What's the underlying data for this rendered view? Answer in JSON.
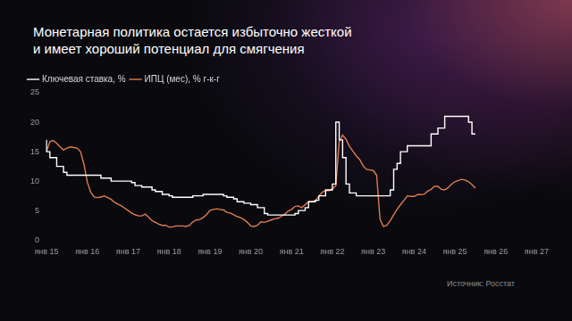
{
  "chart_data": {
    "type": "line",
    "title": [
      "Монетарная политика остается избыточно жесткой",
      "и имеет хороший потенциал для смягчения"
    ],
    "source": "Источник: Росстат",
    "categories": [
      "янв 15",
      null,
      null,
      null,
      null,
      null,
      null,
      null,
      null,
      null,
      null,
      null,
      "янв 16",
      null,
      null,
      null,
      null,
      null,
      null,
      null,
      null,
      null,
      null,
      null,
      "янв 17",
      null,
      null,
      null,
      null,
      null,
      null,
      null,
      null,
      null,
      null,
      null,
      "янв 18",
      null,
      null,
      null,
      null,
      null,
      null,
      null,
      null,
      null,
      null,
      null,
      "янв 19",
      null,
      null,
      null,
      null,
      null,
      null,
      null,
      null,
      null,
      null,
      null,
      "янв 20",
      null,
      null,
      null,
      null,
      null,
      null,
      null,
      null,
      null,
      null,
      null,
      "янв 21",
      null,
      null,
      null,
      null,
      null,
      null,
      null,
      null,
      null,
      null,
      null,
      "янв 22",
      null,
      null,
      null,
      null,
      null,
      null,
      null,
      null,
      null,
      null,
      null,
      "янв 23",
      null,
      null,
      null,
      null,
      null,
      null,
      null,
      null,
      null,
      null,
      null,
      "янв 24",
      null,
      null,
      null,
      null,
      null,
      null,
      null,
      null,
      null,
      null,
      null,
      "янв 25",
      null,
      null,
      null,
      null,
      null,
      null,
      null,
      null,
      null,
      null,
      null,
      "янв 26",
      null,
      null,
      null,
      null,
      null,
      null,
      null,
      null,
      null,
      null,
      null,
      "янв 27"
    ],
    "series": [
      {
        "name": "Ключевая ставка, %",
        "color": "#ffffff",
        "line_style": "step",
        "values": [
          17,
          15,
          14,
          14,
          12.5,
          12.5,
          11.5,
          11,
          11,
          11,
          11,
          11,
          11,
          11,
          11,
          11,
          11,
          10.5,
          10.5,
          10.5,
          10,
          10,
          10,
          10,
          10,
          10,
          9.75,
          9.25,
          9.25,
          9,
          9,
          9,
          8.5,
          8.25,
          8.25,
          7.75,
          7.75,
          7.5,
          7.25,
          7.25,
          7.25,
          7.25,
          7.25,
          7.25,
          7.5,
          7.5,
          7.5,
          7.75,
          7.75,
          7.75,
          7.75,
          7.75,
          7.75,
          7.5,
          7.25,
          7.25,
          7,
          6.5,
          6.5,
          6.25,
          6.25,
          6,
          6,
          5.5,
          5.5,
          4.5,
          4.25,
          4.25,
          4.25,
          4.25,
          4.25,
          4.25,
          4.25,
          4.25,
          4.5,
          5,
          5,
          5.5,
          6.5,
          6.5,
          6.75,
          7.5,
          7.5,
          8.5,
          8.5,
          9.5,
          20,
          17,
          14,
          9.5,
          8,
          8,
          7.5,
          7.5,
          7.5,
          7.5,
          7.5,
          7.5,
          7.5,
          7.5,
          7.5,
          7.5,
          8.5,
          12,
          13,
          15,
          15,
          16,
          16,
          16,
          16,
          16,
          16,
          16,
          18,
          18,
          19,
          19,
          21,
          21,
          21,
          21,
          21,
          21,
          21,
          20,
          18,
          null,
          null,
          null,
          null,
          null,
          null,
          null,
          null,
          null,
          null,
          null,
          null,
          null,
          null,
          null,
          null,
          null,
          null
        ]
      },
      {
        "name": "ИПЦ (мес), % г-к-г",
        "color": "#e07b52",
        "line_style": "solid",
        "values": [
          15,
          16.7,
          16.9,
          16.4,
          15.8,
          15.3,
          15.6,
          15.8,
          15.7,
          15.6,
          15,
          12.9,
          9.8,
          8.1,
          7.3,
          7.2,
          7.3,
          7.5,
          7.2,
          6.9,
          6.4,
          6.1,
          5.8,
          5.4,
          5,
          4.6,
          4.3,
          4.1,
          4.1,
          4.4,
          3.9,
          3.3,
          3,
          2.7,
          2.5,
          2.5,
          2.2,
          2.2,
          2.4,
          2.4,
          2.4,
          2.3,
          2.5,
          3.1,
          3.4,
          3.5,
          3.8,
          4.3,
          5,
          5.2,
          5.3,
          5.2,
          5.1,
          4.7,
          4.6,
          4.3,
          4,
          3.8,
          3.5,
          3,
          2.4,
          2.3,
          2.5,
          3.1,
          3,
          3.2,
          3.4,
          3.6,
          3.7,
          4,
          4.4,
          4.9,
          5.2,
          5.7,
          5.8,
          5.5,
          6,
          6.5,
          6.5,
          6.7,
          7.4,
          8.1,
          8.4,
          8.4,
          8.7,
          9.2,
          16.7,
          17.8,
          17.1,
          15.9,
          15.1,
          14.3,
          13.7,
          12.6,
          12,
          11.9,
          11.8,
          11,
          3.5,
          2.3,
          2.5,
          3.3,
          4.3,
          5.2,
          6,
          6.7,
          7.5,
          7.4,
          7.4,
          7.7,
          7.7,
          7.8,
          8.3,
          8.6,
          9.1,
          9.1,
          8.6,
          8.5,
          8.9,
          9.5,
          9.9,
          10.1,
          10.3,
          10.2,
          9.9,
          9.4,
          8.8,
          null,
          null,
          null,
          null,
          null,
          null,
          null,
          null,
          null,
          null,
          null,
          null,
          null,
          null,
          null,
          null,
          null,
          null
        ]
      }
    ],
    "ylim": [
      0,
      25
    ],
    "yticks": [
      0,
      5,
      10,
      15,
      20,
      25
    ],
    "grid": false,
    "legend": "top-left"
  }
}
